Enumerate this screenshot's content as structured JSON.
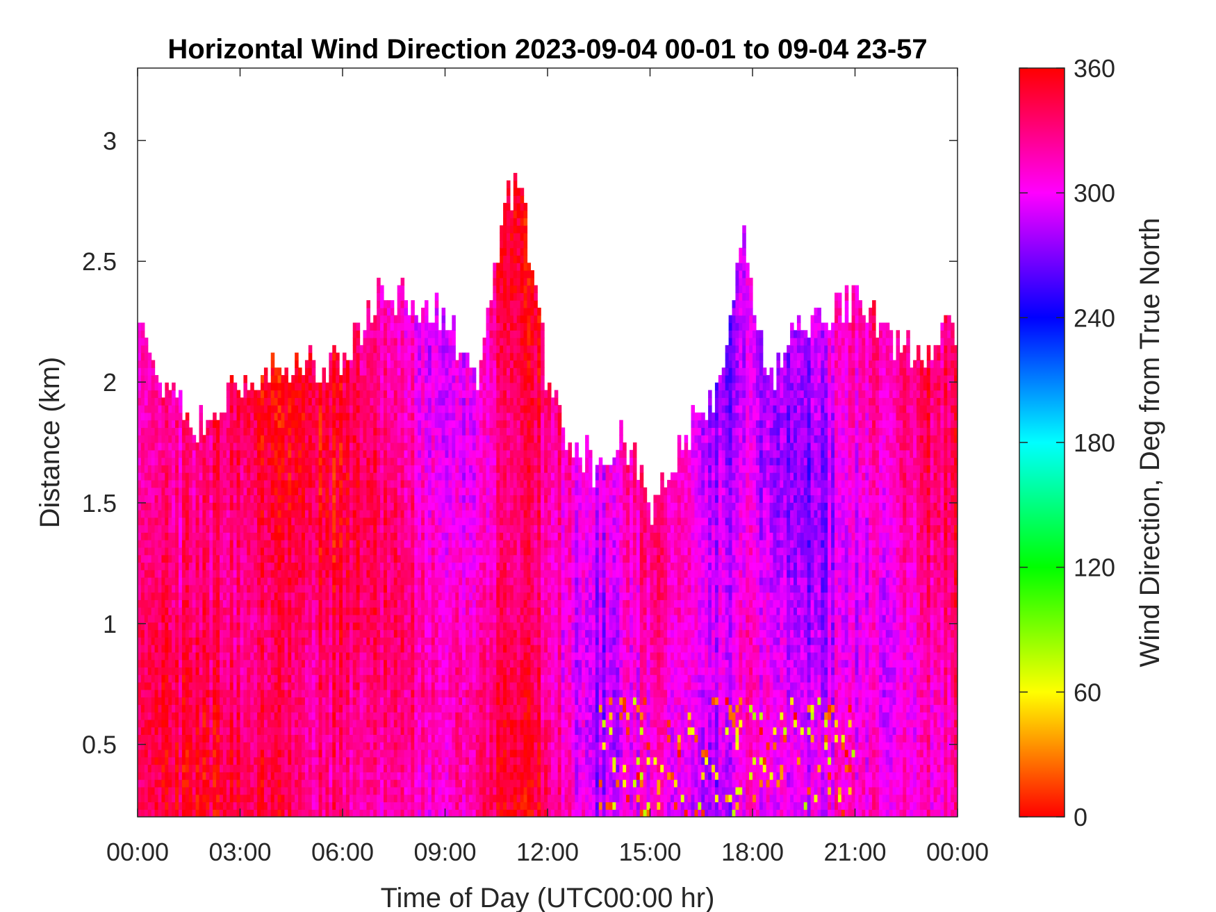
{
  "chart_data": {
    "type": "heatmap",
    "title": "Horizontal Wind Direction 2023-09-04 00-01 to 09-04 23-57",
    "xlabel": "Time of Day (UTC00:00 hr)",
    "ylabel": "Distance (km)",
    "colorbar_label": "Wind Direction, Deg from True North",
    "xlim_hours": [
      0,
      24
    ],
    "ylim_km": [
      0.2,
      3.3
    ],
    "clim": [
      0,
      360
    ],
    "x_ticks": [
      {
        "hour": 0,
        "label": "00:00"
      },
      {
        "hour": 3,
        "label": "03:00"
      },
      {
        "hour": 6,
        "label": "06:00"
      },
      {
        "hour": 9,
        "label": "09:00"
      },
      {
        "hour": 12,
        "label": "12:00"
      },
      {
        "hour": 15,
        "label": "15:00"
      },
      {
        "hour": 18,
        "label": "18:00"
      },
      {
        "hour": 21,
        "label": "21:00"
      },
      {
        "hour": 24,
        "label": "00:00"
      }
    ],
    "y_ticks": [
      {
        "value": 0.5,
        "label": "0.5"
      },
      {
        "value": 1,
        "label": "1"
      },
      {
        "value": 1.5,
        "label": "1.5"
      },
      {
        "value": 2,
        "label": "2"
      },
      {
        "value": 2.5,
        "label": "2.5"
      },
      {
        "value": 3,
        "label": "3"
      }
    ],
    "colorbar_ticks": [
      {
        "value": 0,
        "label": "0"
      },
      {
        "value": 60,
        "label": "60"
      },
      {
        "value": 120,
        "label": "120"
      },
      {
        "value": 180,
        "label": "180"
      },
      {
        "value": 240,
        "label": "240"
      },
      {
        "value": 300,
        "label": "300"
      },
      {
        "value": 360,
        "label": "360"
      }
    ],
    "colormap": "hsv",
    "colormap_stops": [
      {
        "value": 0,
        "color": "#ff0000"
      },
      {
        "value": 60,
        "color": "#ffff00"
      },
      {
        "value": 120,
        "color": "#00ff00"
      },
      {
        "value": 180,
        "color": "#00ffff"
      },
      {
        "value": 240,
        "color": "#0000ff"
      },
      {
        "value": 300,
        "color": "#ff00ff"
      },
      {
        "value": 360,
        "color": "#ff0000"
      }
    ],
    "data_top_km_by_hour": [
      [
        0,
        2.25
      ],
      [
        1,
        1.92
      ],
      [
        2,
        1.82
      ],
      [
        3,
        1.97
      ],
      [
        4,
        2.05
      ],
      [
        5,
        2.05
      ],
      [
        6,
        2.12
      ],
      [
        7,
        2.35
      ],
      [
        8,
        2.35
      ],
      [
        9,
        2.25
      ],
      [
        10,
        2.0
      ],
      [
        10.8,
        2.8
      ],
      [
        11.3,
        2.75
      ],
      [
        12,
        2.0
      ],
      [
        12.5,
        1.75
      ],
      [
        13.5,
        1.65
      ],
      [
        14.2,
        1.78
      ],
      [
        15,
        1.48
      ],
      [
        16,
        1.8
      ],
      [
        16.8,
        1.9
      ],
      [
        17.3,
        2.2
      ],
      [
        17.7,
        2.65
      ],
      [
        18.2,
        2.2
      ],
      [
        18.6,
        1.95
      ],
      [
        19.2,
        2.3
      ],
      [
        20,
        2.25
      ],
      [
        21,
        2.35
      ],
      [
        22,
        2.2
      ],
      [
        23,
        2.1
      ],
      [
        24,
        2.25
      ]
    ],
    "dominant_direction_deg_by_hour": [
      [
        0,
        330
      ],
      [
        3,
        345
      ],
      [
        6,
        340
      ],
      [
        8,
        315
      ],
      [
        9.5,
        305
      ],
      [
        11,
        345
      ],
      [
        12,
        335
      ],
      [
        13.5,
        290
      ],
      [
        15,
        320
      ],
      [
        17,
        280
      ],
      [
        18,
        300
      ],
      [
        19.3,
        275
      ],
      [
        20.5,
        300
      ],
      [
        22,
        315
      ],
      [
        24,
        330
      ]
    ]
  }
}
